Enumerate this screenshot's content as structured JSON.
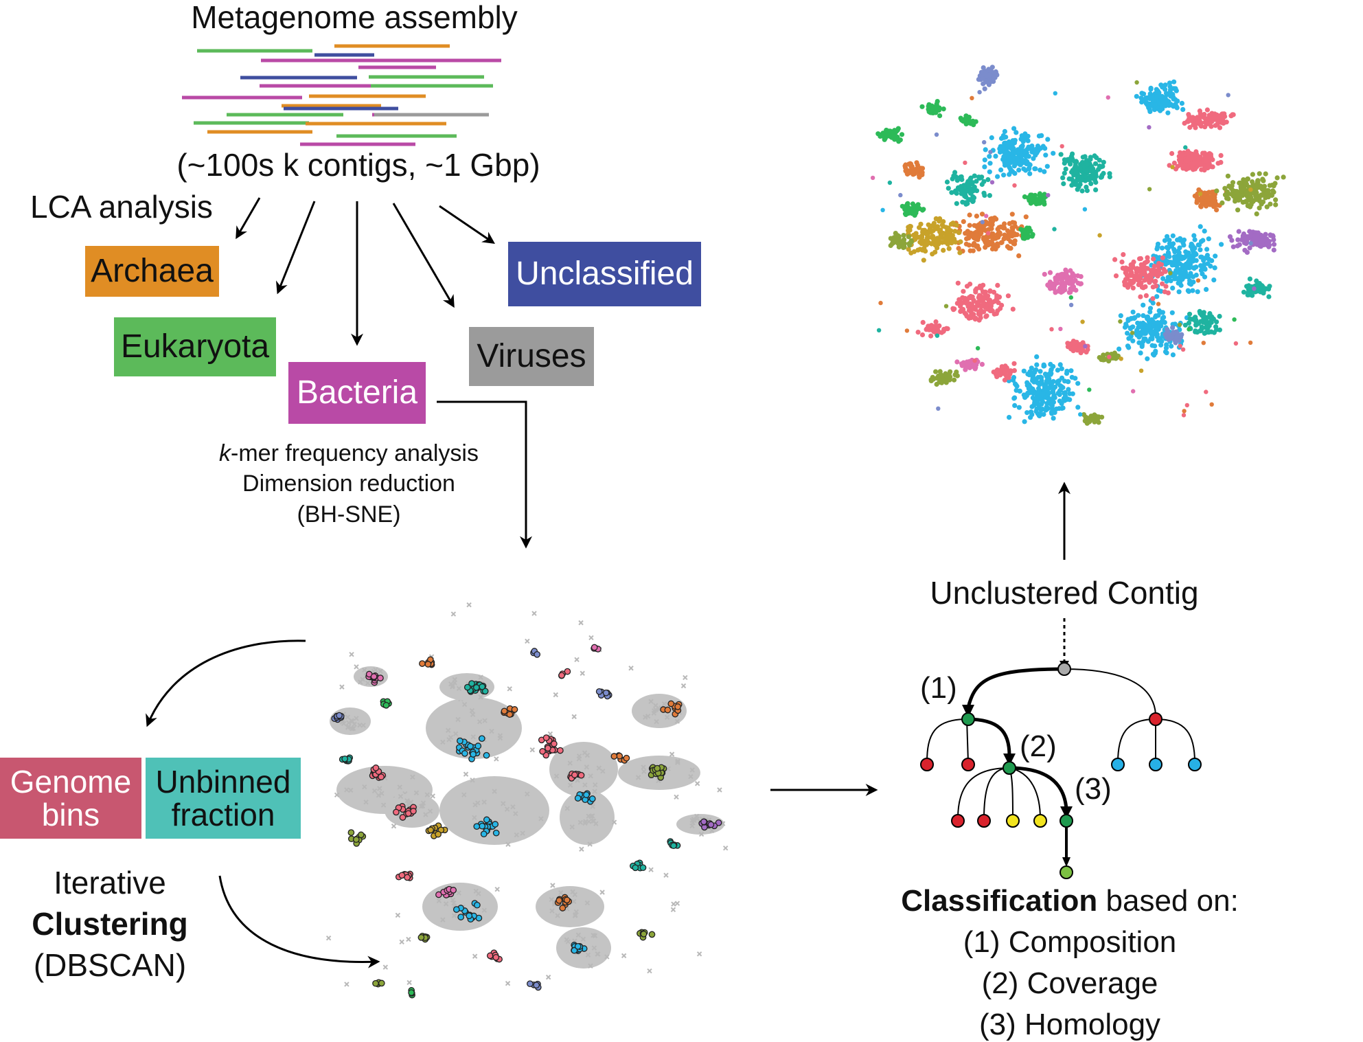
{
  "top": {
    "title": "Metagenome assembly",
    "contigs_label": "(~100s k contigs, ~1 Gbp)",
    "lca_label": "LCA analysis",
    "contig_colors": [
      "#5cba5a",
      "#e08d24",
      "#b94aa6",
      "#3f4e9f",
      "#9b9b9b"
    ]
  },
  "taxa": {
    "archaea": {
      "label": "Archaea",
      "color": "#e08d24"
    },
    "eukaryota": {
      "label": "Eukaryota",
      "color": "#5cba5a"
    },
    "bacteria": {
      "label": "Bacteria",
      "color": "#b94aa6"
    },
    "viruses": {
      "label": "Viruses",
      "color": "#9b9b9b"
    },
    "unclassified": {
      "label": "Unclassified",
      "color": "#3f4ea0"
    }
  },
  "kmer": {
    "line1_italic": "k",
    "line1_rest": "-mer frequency analysis",
    "line2": "Dimension reduction",
    "line3": "(BH-SNE)"
  },
  "bins": {
    "genome_bins": {
      "label_line1": "Genome",
      "label_line2": "bins",
      "color": "#c85770"
    },
    "unbinned": {
      "label_line1": "Unbinned",
      "label_line2": "fraction",
      "color": "#4fc1b7"
    }
  },
  "clustering": {
    "line1": "Iterative",
    "line2": "Clustering",
    "line3": "(DBSCAN)"
  },
  "unclustered_label": "Unclustered Contig",
  "tree": {
    "step1": "(1)",
    "step2": "(2)",
    "step3": "(3)",
    "node_colors": {
      "root": "#aaaaaa",
      "green": "#1f9a4f",
      "red": "#d9232d",
      "blue": "#27b0e6",
      "yellow": "#f2e41f",
      "leaf": "#7cc142"
    }
  },
  "classification": {
    "bold": "Classification",
    "rest": " based on:",
    "item1": "(1) Composition",
    "item2": "(2) Coverage",
    "item3": "(3) Homology"
  },
  "cluster_palette": [
    "#29b6e6",
    "#1fb3a0",
    "#f06a7e",
    "#e07b3a",
    "#8ca53a",
    "#2dba58",
    "#e06fb0",
    "#a36bc4",
    "#7b8ccc",
    "#c8a22a"
  ]
}
